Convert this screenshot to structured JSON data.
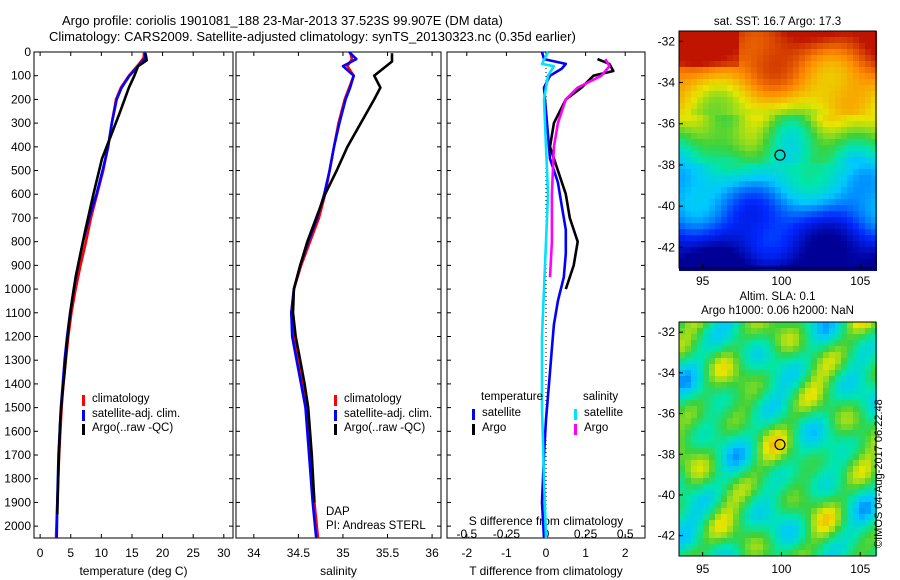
{
  "header": {
    "line1": "Argo profile: coriolis 1901081_188 23-Mar-2013 37.523S 99.907E (DM data)",
    "line2": "Climatology: CARS2009. Satellite-adjusted climatology: synTS_20130323.nc (0.35d earlier)"
  },
  "colors": {
    "climatology": "#ff0000",
    "satellite": "#0000ff",
    "argo": "#000000",
    "sat_salinity": "#00e0ff",
    "argo_salinity": "#ff00ff"
  },
  "chart_data": [
    {
      "type": "line",
      "panel": "temperature",
      "xlabel": "temperature (deg C)",
      "ylabel": "",
      "xlim": [
        -1,
        31.5
      ],
      "ylim": [
        2050,
        0
      ],
      "xticks": [
        0,
        5,
        10,
        15,
        20,
        25,
        30
      ],
      "yticks": [
        0,
        100,
        200,
        300,
        400,
        500,
        600,
        700,
        800,
        900,
        1000,
        1100,
        1200,
        1300,
        1400,
        1500,
        1600,
        1700,
        1800,
        1900,
        2000
      ],
      "legend": [
        "climatology",
        "satellite-adj. clim.",
        "Argo(..raw -QC)"
      ],
      "legend_location": "lower-right",
      "series": [
        {
          "name": "climatology",
          "color_key": "climatology",
          "x": [
            17.0,
            16.9,
            16.0,
            14.5,
            13.2,
            12.4,
            11.7,
            11.1,
            10.3,
            9.3,
            8.3,
            7.5,
            6.6,
            5.8,
            5.1,
            4.6,
            4.2,
            3.8,
            3.5,
            3.1,
            2.8,
            2.6
          ],
          "y": [
            0,
            25,
            55,
            100,
            150,
            200,
            300,
            400,
            500,
            600,
            700,
            800,
            900,
            1000,
            1100,
            1200,
            1300,
            1400,
            1500,
            1700,
            1900,
            2050
          ]
        },
        {
          "name": "satellite-adj. clim.",
          "color_key": "satellite",
          "x": [
            17.1,
            17.2,
            16.2,
            14.6,
            13.3,
            12.5,
            11.7,
            11.1,
            10.2,
            9.2,
            8.0,
            7.0,
            6.2,
            5.5,
            4.9,
            4.4,
            4.0,
            3.7,
            3.4,
            3.0,
            2.8,
            2.7
          ],
          "y": [
            0,
            25,
            55,
            100,
            150,
            200,
            300,
            400,
            500,
            600,
            700,
            800,
            900,
            1000,
            1100,
            1200,
            1300,
            1400,
            1500,
            1700,
            1900,
            2050
          ]
        },
        {
          "name": "Argo(..raw -QC)",
          "color_key": "argo",
          "x": [
            17.2,
            17.3,
            17.4,
            16.0,
            15.4,
            14.5,
            13.1,
            11.6,
            10.1,
            8.7,
            7.4,
            6.6,
            5.8,
            5.2,
            4.7,
            4.3,
            4.0,
            3.6,
            3.3,
            3.0,
            2.8
          ],
          "y": [
            5,
            20,
            35,
            60,
            100,
            150,
            250,
            350,
            450,
            600,
            750,
            850,
            950,
            1050,
            1150,
            1250,
            1350,
            1450,
            1550,
            1750,
            1950
          ]
        }
      ]
    },
    {
      "type": "line",
      "panel": "salinity",
      "xlabel": "salinity",
      "ylabel": "",
      "xlim": [
        33.8,
        36.1
      ],
      "ylim": [
        2050,
        0
      ],
      "xticks": [
        34,
        34.5,
        35,
        35.5,
        36
      ],
      "legend": [
        "climatology",
        "satellite-adj. clim.",
        "Argo(..raw -QC)"
      ],
      "legend_location": "lower-right",
      "annotations": [
        "DAP",
        "PI: Andreas STERL"
      ],
      "series": [
        {
          "name": "climatology",
          "color_key": "climatology",
          "x": [
            35.08,
            35.1,
            35.05,
            35.12,
            35.07,
            35.02,
            34.95,
            34.9,
            34.85,
            34.8,
            34.73,
            34.63,
            34.53,
            34.45,
            34.42,
            34.45,
            34.5,
            34.55,
            34.6,
            34.64,
            34.68,
            34.72
          ],
          "y": [
            0,
            30,
            60,
            100,
            150,
            200,
            300,
            400,
            500,
            600,
            700,
            800,
            900,
            1000,
            1100,
            1200,
            1300,
            1400,
            1500,
            1700,
            1900,
            2050
          ]
        },
        {
          "name": "satellite-adj. clim.",
          "color_key": "satellite",
          "x": [
            35.07,
            35.15,
            35.0,
            35.12,
            35.08,
            35.03,
            34.96,
            34.9,
            34.85,
            34.79,
            34.71,
            34.61,
            34.52,
            34.45,
            34.42,
            34.43,
            34.48,
            34.53,
            34.58,
            34.62,
            34.66,
            34.7
          ],
          "y": [
            0,
            30,
            60,
            100,
            150,
            200,
            300,
            400,
            500,
            600,
            700,
            800,
            900,
            1000,
            1100,
            1200,
            1300,
            1400,
            1500,
            1700,
            1900,
            2050
          ]
        },
        {
          "name": "Argo(..raw -QC)",
          "color_key": "argo",
          "x": [
            35.55,
            35.55,
            35.45,
            35.35,
            35.42,
            35.35,
            35.2,
            35.05,
            34.93,
            34.8,
            34.7,
            34.6,
            34.52,
            34.45,
            34.44,
            34.47,
            34.52,
            34.57,
            34.61,
            34.65,
            34.68
          ],
          "y": [
            5,
            40,
            70,
            100,
            150,
            200,
            300,
            400,
            500,
            600,
            700,
            800,
            900,
            1000,
            1100,
            1200,
            1300,
            1400,
            1500,
            1700,
            1900
          ]
        }
      ]
    },
    {
      "type": "line",
      "panel": "difference",
      "xlabel": "T difference from climatology",
      "xlabel_top": "S difference from climatology",
      "xlim": [
        -2.5,
        2.5
      ],
      "ylim": [
        2050,
        0
      ],
      "xticks": [
        -2,
        -1,
        0,
        1,
        2
      ],
      "xticks_top": [
        "-0.5",
        "-0.25",
        "0",
        "0.25",
        "0.5"
      ],
      "legend_titles": [
        "temperature",
        "salinity"
      ],
      "legend": [
        "satellite",
        "Argo",
        "satellite",
        "Argo"
      ],
      "legend_location": "lower-center",
      "series": [
        {
          "name": "satellite",
          "group": "temperature",
          "color_key": "satellite",
          "x": [
            -0.1,
            -0.05,
            0.5,
            0.4,
            0.1,
            -0.05,
            0.0,
            0.05,
            0.1,
            0.3,
            0.4,
            0.5,
            0.5,
            0.45,
            0.3,
            0.2,
            0.15,
            0.1,
            0.05,
            0.0,
            -0.05,
            -0.1,
            -0.05
          ],
          "y": [
            0,
            30,
            50,
            70,
            100,
            150,
            250,
            350,
            450,
            550,
            650,
            750,
            850,
            950,
            1050,
            1150,
            1250,
            1350,
            1450,
            1550,
            1700,
            1900,
            2050
          ]
        },
        {
          "name": "Argo",
          "group": "temperature",
          "color_key": "argo",
          "x": [
            1.3,
            1.6,
            1.7,
            1.2,
            0.9,
            0.5,
            0.2,
            0.1,
            0.3,
            0.5,
            0.6,
            0.8,
            0.7,
            0.5
          ],
          "y": [
            30,
            50,
            80,
            100,
            150,
            200,
            300,
            400,
            500,
            600,
            700,
            800,
            900,
            1000
          ]
        },
        {
          "name": "satellite",
          "group": "salinity",
          "color_key": "sat_salinity",
          "x": [
            0.05,
            -0.1,
            0.2,
            0.05,
            -0.05,
            0.0,
            0.05,
            0.0,
            -0.05,
            -0.1,
            -0.1,
            -0.05,
            0.0
          ],
          "y": [
            0,
            50,
            60,
            100,
            200,
            400,
            600,
            800,
            1000,
            1200,
            1500,
            1800,
            2050
          ]
        },
        {
          "name": "Argo",
          "group": "salinity",
          "color_key": "argo_salinity",
          "x": [
            1.5,
            1.6,
            1.4,
            0.8,
            0.5,
            0.3,
            0.2,
            0.15,
            0.15,
            0.1
          ],
          "y": [
            30,
            60,
            100,
            150,
            200,
            300,
            400,
            600,
            800,
            950
          ]
        }
      ]
    },
    {
      "type": "heatmap",
      "panel": "sst_map",
      "title": "sat. SST: 16.7 Argo: 17.3",
      "xticks": [
        95,
        100,
        105
      ],
      "yticks": [
        -32,
        -34,
        -36,
        -38,
        -40,
        -42
      ],
      "xlim": [
        93.5,
        106
      ],
      "ylim": [
        -43,
        -31.5
      ],
      "marker": {
        "lon": 99.907,
        "lat": -37.523
      }
    },
    {
      "type": "heatmap",
      "panel": "sla_map",
      "title": "Altim. SLA: 0.1",
      "subtitle": "Argo h1000: 0.06 h2000: NaN",
      "xticks": [
        95,
        100,
        105
      ],
      "yticks": [
        -32,
        -34,
        -36,
        -38,
        -40,
        -42
      ],
      "xlim": [
        93.5,
        106
      ],
      "ylim": [
        -43,
        -31.5
      ],
      "marker": {
        "lon": 99.907,
        "lat": -37.523
      }
    }
  ],
  "legend_labels": {
    "climatology": "climatology",
    "satellite_adj": "satellite-adj. clim.",
    "argo_raw": "Argo(..raw -QC)",
    "temperature_title": "temperature",
    "salinity_title": "salinity",
    "satellite": "satellite",
    "argo": "Argo"
  },
  "annotation": {
    "dap": "DAP",
    "pi": "PI: Andreas STERL"
  },
  "footer_stamp": "©IMOS 04-Aug-2017 06:22:48"
}
